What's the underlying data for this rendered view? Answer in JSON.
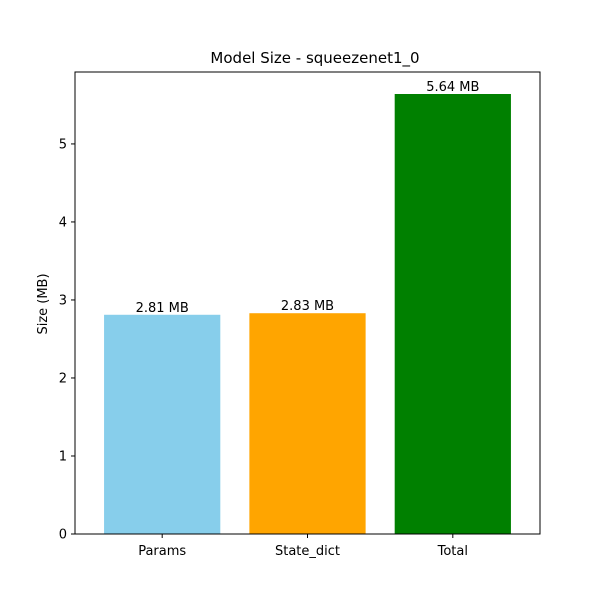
{
  "chart_data": {
    "type": "bar",
    "title": "Model Size - squeezenet1_0",
    "xlabel": "",
    "ylabel": "Size (MB)",
    "categories": [
      "Params",
      "State_dict",
      "Total"
    ],
    "values": [
      2.81,
      2.83,
      5.64
    ],
    "value_labels": [
      "2.81 MB",
      "2.83 MB",
      "5.64 MB"
    ],
    "colors": [
      "#87ceeb",
      "#ffa500",
      "#008000"
    ],
    "ylim": [
      0,
      5.922
    ],
    "yticks": [
      0,
      1,
      2,
      3,
      4,
      5
    ],
    "ytick_labels": [
      "0",
      "1",
      "2",
      "3",
      "4",
      "5"
    ],
    "grid": false,
    "legend": "none"
  }
}
